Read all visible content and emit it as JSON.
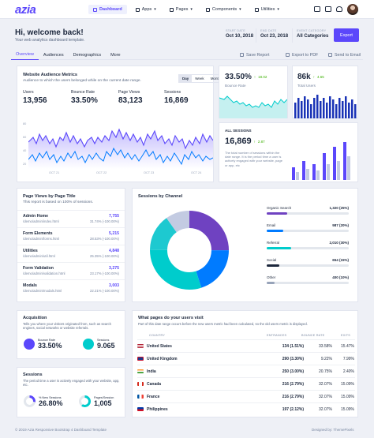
{
  "app": {
    "logo": "azia"
  },
  "nav": [
    {
      "label": "Dashboard",
      "active": true
    },
    {
      "label": "Apps",
      "active": false
    },
    {
      "label": "Pages",
      "active": false
    },
    {
      "label": "Components",
      "active": false
    },
    {
      "label": "Utilities",
      "active": false
    }
  ],
  "page": {
    "title": "Hi, welcome back!",
    "subtitle": "Your web analytics dashboard template.",
    "start_label": "START DATE",
    "start_value": "Oct 10, 2018",
    "end_label": "END DATE",
    "end_value": "Oct 23, 2018",
    "cat_label": "EVENT CATEGORY",
    "cat_value": "All Categories",
    "export": "Export"
  },
  "tabs": [
    "Overview",
    "Audiences",
    "Demographics",
    "More"
  ],
  "actions": {
    "save": "Save Report",
    "pdf": "Export to PDF",
    "email": "Send to Email"
  },
  "audience": {
    "title": "Website Audience Metrics",
    "desc": "Audience to which the users belonged while on the current date range.",
    "ranges": [
      "Day",
      "Week",
      "Month"
    ],
    "stats": [
      {
        "label": "Users",
        "value": "13,956"
      },
      {
        "label": "Bounce Rate",
        "value": "33.50%"
      },
      {
        "label": "Page Views",
        "value": "83,123"
      },
      {
        "label": "Sessions",
        "value": "16,869"
      }
    ],
    "y_ticks": [
      "80",
      "60",
      "40",
      "20"
    ],
    "x_ticks": [
      "OCT 21",
      "OCT 22",
      "OCT 23",
      "OCT 24"
    ]
  },
  "bounce": {
    "value": "33.50%",
    "change": "18.02",
    "label": "Bounce Rate"
  },
  "users": {
    "value": "86k",
    "change": "4.65",
    "label": "Total Users"
  },
  "sessions": {
    "title": "ALL SESSIONS",
    "value": "16,869",
    "change": "2.87",
    "desc": "The total number of sessions within the date range. It is the period time a user is actively engaged with your website, page or app, etc"
  },
  "pageviews": {
    "title": "Page Views by Page Title",
    "desc": "This report is based on 100% of sessions.",
    "rows": [
      {
        "title": "Admin Home",
        "url": "/demo/admin/index.html",
        "value": "7,755",
        "pct": "31.74% (-100.00%)"
      },
      {
        "title": "Form Elements",
        "url": "/demo/admin/forms.html",
        "value": "5,215",
        "pct": "28.53% (-100.00%)"
      },
      {
        "title": "Utilities",
        "url": "/demo/admin/util.html",
        "value": "4,848",
        "pct": "25.35% (-100.00%)"
      },
      {
        "title": "Form Validation",
        "url": "/demo/admin/validation.html",
        "value": "3,275",
        "pct": "23.17% (-100.00%)"
      },
      {
        "title": "Modals",
        "url": "/demo/admin/modals.html",
        "value": "3,003",
        "pct": "22.21% (-100.00%)"
      }
    ]
  },
  "channel": {
    "title": "Sessions by Channel",
    "items": [
      {
        "label": "Organic Search",
        "value": "1,320 (25%)",
        "pct": 0.25,
        "color": "#6f42c1"
      },
      {
        "label": "Email",
        "value": "987 (20%)",
        "pct": 0.2,
        "color": "#007bff"
      },
      {
        "label": "Referral",
        "value": "2,010 (30%)",
        "pct": 0.3,
        "color": "#00cccc"
      },
      {
        "label": "Social",
        "value": "654 (15%)",
        "pct": 0.15,
        "color": "#1c273c"
      },
      {
        "label": "Other",
        "value": "400 (10%)",
        "pct": 0.1,
        "color": "#97a3b9"
      }
    ]
  },
  "acquisition": {
    "title": "Acquisition",
    "desc": "Tells you where your visitors originated from, such as search engines, social networks or website referrals.",
    "a_value": "33.50%",
    "a_label": "Bounce Rate",
    "b_value": "9.065",
    "b_label": "Sessions"
  },
  "sess_card": {
    "title": "Sessions",
    "desc": "The period time a user is actively engaged with your website, app, etc.",
    "a_label": "% New Sessions",
    "a_value": "26.80%",
    "b_label": "Pages/Session",
    "b_value": "1,005"
  },
  "countries": {
    "title": "What pages do your users visit",
    "desc": "Part of this date range occurs before the new users metric had been calculated, so the old users metric is displayed.",
    "headers": [
      "COUNTRY",
      "ENTRANCES",
      "BOUNCE RATE",
      "EXITS"
    ],
    "rows": [
      {
        "name": "United States",
        "entrances": "134 (1.51%)",
        "bounce": "33.58%",
        "exits": "15.47%"
      },
      {
        "name": "United Kingdom",
        "entrances": "290 (3.30%)",
        "bounce": "9.22%",
        "exits": "7.99%"
      },
      {
        "name": "India",
        "entrances": "250 (3.00%)",
        "bounce": "20.75%",
        "exits": "2.40%"
      },
      {
        "name": "Canada",
        "entrances": "216 (2.79%)",
        "bounce": "32.07%",
        "exits": "15.09%"
      },
      {
        "name": "France",
        "entrances": "216 (2.79%)",
        "bounce": "32.07%",
        "exits": "15.09%"
      },
      {
        "name": "Philippines",
        "entrances": "197 (2.12%)",
        "bounce": "32.07%",
        "exits": "15.09%"
      }
    ]
  },
  "footer": {
    "left": "© 2019 Azia Responsive Bootstrap 4 Dashboard Template",
    "right": "Designed by: ThemePixels"
  },
  "colors": {
    "accent": "#5b47fb",
    "teal": "#00cccc",
    "blue": "#007bff",
    "purple": "#6f42c1",
    "green": "#3bb001",
    "red": "#dc3545"
  }
}
